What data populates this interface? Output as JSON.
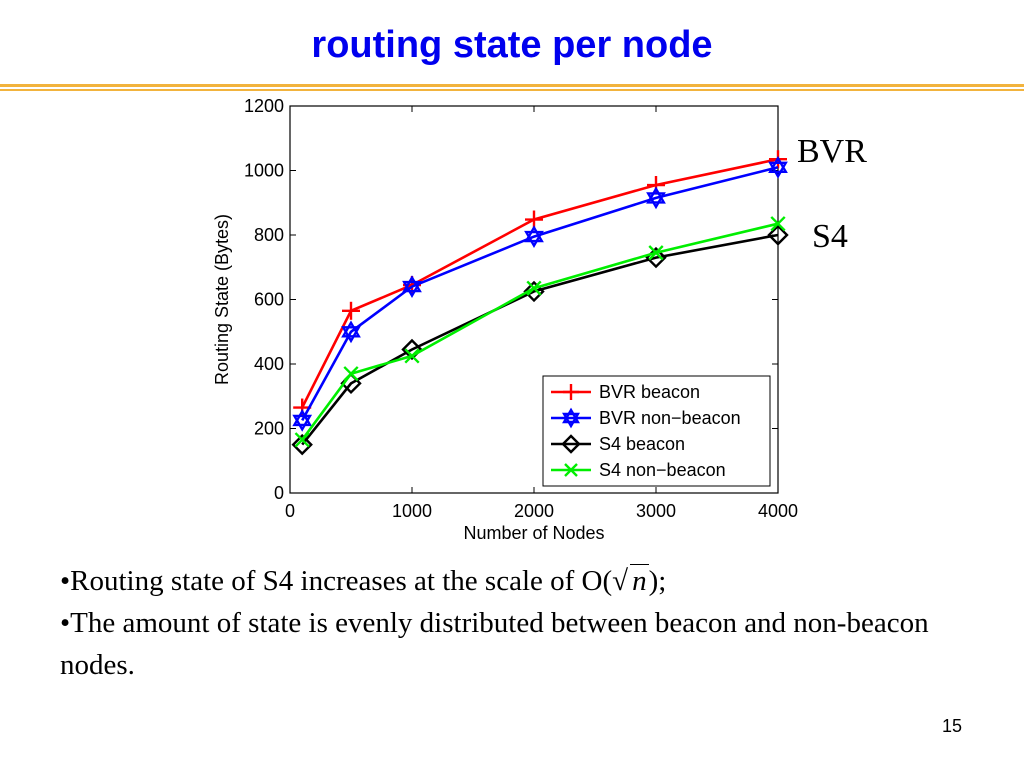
{
  "title": "routing state per node",
  "side_labels": {
    "bvr": "BVR",
    "s4": "S4"
  },
  "bullets": {
    "b1_prefix": "•Routing state of S4 increases at the scale of O(",
    "b1_sqrt_symbol": "√",
    "b1_var": "n",
    "b1_suffix": ");",
    "b2": "•The amount of state is evenly distributed between beacon and non-beacon nodes."
  },
  "page_number": "15",
  "chart_data": {
    "type": "line",
    "title": "",
    "xlabel": "Number of Nodes",
    "ylabel": "Routing State (Bytes)",
    "xlim": [
      0,
      4000
    ],
    "ylim": [
      0,
      1200
    ],
    "xticks": [
      "0",
      "1000",
      "2000",
      "3000",
      "4000"
    ],
    "yticks": [
      "0",
      "200",
      "400",
      "600",
      "800",
      "1000",
      "1200"
    ],
    "grid": false,
    "legend_position": "lower-right",
    "x": [
      100,
      500,
      1000,
      2000,
      3000,
      4000
    ],
    "series": [
      {
        "name": "BVR beacon",
        "color": "#ff0000",
        "marker": "plus",
        "values": [
          265,
          565,
          645,
          848,
          955,
          1035
        ]
      },
      {
        "name": "BVR non−beacon",
        "color": "#0000ff",
        "marker": "hexagram",
        "values": [
          225,
          500,
          640,
          795,
          915,
          1010
        ]
      },
      {
        "name": "S4 beacon",
        "color": "#000000",
        "marker": "diamond",
        "values": [
          150,
          340,
          445,
          625,
          730,
          800
        ]
      },
      {
        "name": "S4 non−beacon",
        "color": "#00ee00",
        "marker": "x",
        "values": [
          165,
          370,
          425,
          635,
          745,
          835
        ]
      }
    ]
  }
}
